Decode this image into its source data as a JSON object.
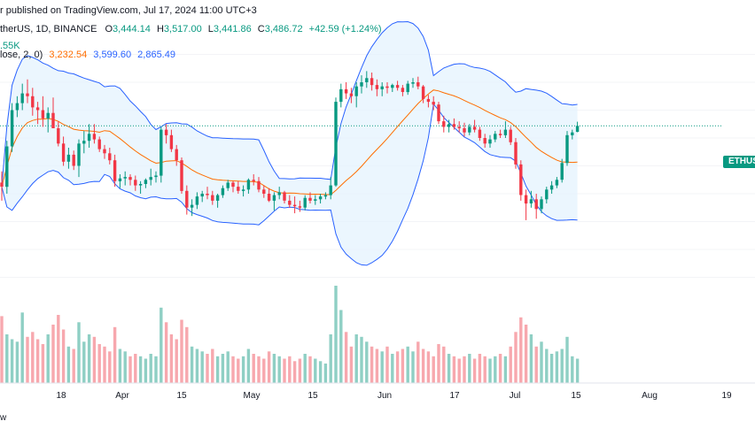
{
  "header": {
    "publisher": "r published on TradingView.com, Jul 17, 2024 11:00 UTC+3",
    "symbol": "therUS, 1D, BINANCE",
    "o_label": "O",
    "o_value": "3,444.14",
    "h_label": "H",
    "h_value": "3,517.00",
    "l_label": "L",
    "l_value": "3,441.86",
    "c_label": "C",
    "c_value": "3,486.72",
    "change": "+42.59 (+1.24%)",
    "volume_value": ".55K",
    "bb_label": "lose, 2, 0)",
    "bb_basis": "3,232.54",
    "bb_upper": "3,599.60",
    "bb_lower": "2,865.49"
  },
  "price_tag": "ETHUSD",
  "footer": "w",
  "colors": {
    "up": "#089981",
    "down": "#f23645",
    "vol_up": "#8fcfc4",
    "vol_down": "#f7a8ae",
    "basis": "#ff6d00",
    "band": "#2962ff",
    "band_fill": "#e3f2fd"
  },
  "chart_data": {
    "type": "candlestick",
    "ylim": [
      2200,
      4200
    ],
    "x_ticks": [
      "18",
      "Apr",
      "15",
      "May",
      "15",
      "Jun",
      "17",
      "Jul",
      "15",
      "Aug",
      "19"
    ],
    "candles": [
      [
        3080,
        3160,
        2950,
        3050
      ],
      [
        3050,
        3380,
        3000,
        3340
      ],
      [
        3340,
        3650,
        3300,
        3600
      ],
      [
        3600,
        3700,
        3550,
        3650
      ],
      [
        3650,
        3790,
        3600,
        3720
      ],
      [
        3720,
        3820,
        3650,
        3700
      ],
      [
        3700,
        3760,
        3560,
        3620
      ],
      [
        3620,
        3660,
        3500,
        3600
      ],
      [
        3600,
        3700,
        3480,
        3540
      ],
      [
        3540,
        3620,
        3440,
        3580
      ],
      [
        3580,
        3690,
        3480,
        3470
      ],
      [
        3470,
        3520,
        3340,
        3360
      ],
      [
        3360,
        3410,
        3200,
        3230
      ],
      [
        3230,
        3330,
        3180,
        3280
      ],
      [
        3280,
        3310,
        3170,
        3200
      ],
      [
        3200,
        3390,
        3120,
        3360
      ],
      [
        3360,
        3450,
        3290,
        3380
      ],
      [
        3380,
        3500,
        3330,
        3430
      ],
      [
        3430,
        3500,
        3360,
        3390
      ],
      [
        3390,
        3410,
        3300,
        3320
      ],
      [
        3320,
        3350,
        3250,
        3290
      ],
      [
        3290,
        3330,
        3210,
        3240
      ],
      [
        3240,
        3280,
        3050,
        3090
      ],
      [
        3090,
        3140,
        3040,
        3110
      ],
      [
        3110,
        3160,
        3060,
        3120
      ],
      [
        3120,
        3140,
        3060,
        3100
      ],
      [
        3100,
        3130,
        3020,
        3060
      ],
      [
        3060,
        3090,
        3000,
        3070
      ],
      [
        3070,
        3110,
        3040,
        3100
      ],
      [
        3100,
        3180,
        3060,
        3120
      ],
      [
        3120,
        3160,
        3080,
        3130
      ],
      [
        3130,
        3480,
        3080,
        3460
      ],
      [
        3460,
        3500,
        3360,
        3420
      ],
      [
        3420,
        3460,
        3300,
        3320
      ],
      [
        3320,
        3350,
        3200,
        3240
      ],
      [
        3240,
        3260,
        3000,
        3020
      ],
      [
        3020,
        3060,
        2850,
        2900
      ],
      [
        2900,
        2960,
        2840,
        2920
      ],
      [
        2920,
        3010,
        2890,
        2980
      ],
      [
        2980,
        3020,
        2940,
        3000
      ],
      [
        3000,
        3050,
        2960,
        2990
      ],
      [
        2990,
        3020,
        2920,
        2950
      ],
      [
        2950,
        3000,
        2900,
        2990
      ],
      [
        2990,
        3060,
        2970,
        3040
      ],
      [
        3040,
        3100,
        3020,
        3080
      ],
      [
        3080,
        3090,
        3010,
        3050
      ],
      [
        3050,
        3090,
        3000,
        3020
      ],
      [
        3020,
        3060,
        2980,
        3030
      ],
      [
        3030,
        3110,
        3000,
        3100
      ],
      [
        3100,
        3140,
        3060,
        3090
      ],
      [
        3090,
        3120,
        3010,
        3030
      ],
      [
        3030,
        3060,
        2970,
        3000
      ],
      [
        3000,
        3040,
        2940,
        2950
      ],
      [
        2950,
        3010,
        2880,
        2990
      ],
      [
        2990,
        3050,
        2960,
        3010
      ],
      [
        3010,
        3020,
        2930,
        2950
      ],
      [
        2950,
        2990,
        2900,
        2920
      ],
      [
        2920,
        2980,
        2860,
        2910
      ],
      [
        2910,
        2950,
        2870,
        2900
      ],
      [
        2900,
        2990,
        2880,
        2970
      ],
      [
        2970,
        3010,
        2930,
        2950
      ],
      [
        2950,
        2990,
        2920,
        2960
      ],
      [
        2960,
        3000,
        2930,
        2980
      ],
      [
        2980,
        3010,
        2960,
        2990
      ],
      [
        2990,
        3120,
        2960,
        3060
      ],
      [
        3060,
        3690,
        3050,
        3660
      ],
      [
        3660,
        3790,
        3620,
        3750
      ],
      [
        3750,
        3800,
        3680,
        3720
      ],
      [
        3720,
        3760,
        3650,
        3700
      ],
      [
        3700,
        3800,
        3620,
        3770
      ],
      [
        3770,
        3850,
        3720,
        3800
      ],
      [
        3800,
        3880,
        3760,
        3830
      ],
      [
        3830,
        3870,
        3740,
        3780
      ],
      [
        3780,
        3820,
        3700,
        3750
      ],
      [
        3750,
        3800,
        3700,
        3770
      ],
      [
        3770,
        3800,
        3720,
        3760
      ],
      [
        3760,
        3790,
        3730,
        3780
      ],
      [
        3780,
        3810,
        3740,
        3760
      ],
      [
        3760,
        3780,
        3700,
        3730
      ],
      [
        3730,
        3810,
        3710,
        3790
      ],
      [
        3790,
        3830,
        3760,
        3800
      ],
      [
        3800,
        3840,
        3750,
        3770
      ],
      [
        3770,
        3780,
        3650,
        3680
      ],
      [
        3680,
        3710,
        3620,
        3660
      ],
      [
        3660,
        3700,
        3600,
        3640
      ],
      [
        3640,
        3660,
        3500,
        3520
      ],
      [
        3520,
        3560,
        3440,
        3480
      ],
      [
        3480,
        3530,
        3440,
        3500
      ],
      [
        3500,
        3540,
        3460,
        3480
      ],
      [
        3480,
        3520,
        3440,
        3470
      ],
      [
        3470,
        3510,
        3410,
        3440
      ],
      [
        3440,
        3500,
        3420,
        3480
      ],
      [
        3480,
        3530,
        3440,
        3460
      ],
      [
        3460,
        3480,
        3380,
        3400
      ],
      [
        3400,
        3430,
        3330,
        3360
      ],
      [
        3360,
        3420,
        3330,
        3390
      ],
      [
        3390,
        3450,
        3370,
        3430
      ],
      [
        3430,
        3460,
        3400,
        3420
      ],
      [
        3420,
        3520,
        3400,
        3460
      ],
      [
        3460,
        3480,
        3350,
        3370
      ],
      [
        3370,
        3400,
        3180,
        3210
      ],
      [
        3210,
        3240,
        2950,
        2990
      ],
      [
        2990,
        3030,
        2810,
        2930
      ],
      [
        2930,
        3020,
        2900,
        2960
      ],
      [
        2960,
        3000,
        2820,
        2890
      ],
      [
        2890,
        2980,
        2860,
        2960
      ],
      [
        2960,
        3050,
        2930,
        3030
      ],
      [
        3030,
        3090,
        3000,
        3060
      ],
      [
        3060,
        3120,
        3040,
        3100
      ],
      [
        3100,
        3250,
        3080,
        3220
      ],
      [
        3220,
        3450,
        3200,
        3420
      ],
      [
        3420,
        3460,
        3390,
        3440
      ],
      [
        3444,
        3517,
        3441,
        3487
      ]
    ],
    "volume": [
      55,
      40,
      36,
      34,
      58,
      38,
      42,
      36,
      32,
      40,
      48,
      56,
      44,
      30,
      28,
      50,
      34,
      40,
      38,
      32,
      30,
      26,
      46,
      28,
      26,
      22,
      24,
      22,
      20,
      24,
      22,
      62,
      50,
      40,
      36,
      52,
      46,
      30,
      28,
      26,
      24,
      28,
      22,
      24,
      26,
      22,
      20,
      22,
      28,
      24,
      22,
      20,
      26,
      24,
      22,
      20,
      22,
      18,
      20,
      24,
      22,
      20,
      18,
      16,
      40,
      80,
      60,
      42,
      30,
      40,
      38,
      34,
      30,
      28,
      26,
      30,
      24,
      26,
      28,
      30,
      26,
      34,
      28,
      26,
      22,
      32,
      30,
      24,
      22,
      20,
      22,
      24,
      20,
      24,
      22,
      20,
      22,
      24,
      22,
      30,
      42,
      54,
      48,
      40,
      30,
      34,
      28,
      24,
      26,
      28,
      38,
      22,
      20
    ]
  }
}
